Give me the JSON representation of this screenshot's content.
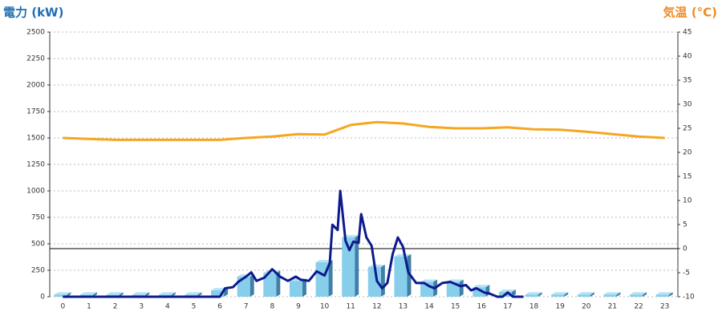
{
  "chart_data": {
    "type": "bar",
    "y_label": "電力 (kW)",
    "y2_label": "気温 (°C)",
    "categories": [
      "0",
      "1",
      "2",
      "3",
      "4",
      "5",
      "6",
      "7",
      "8",
      "9",
      "10",
      "11",
      "12",
      "13",
      "14",
      "15",
      "16",
      "17",
      "18",
      "19",
      "20",
      "21",
      "22",
      "23"
    ],
    "ylim": [
      0,
      2500
    ],
    "yticks": [
      0,
      250,
      500,
      750,
      1000,
      1250,
      1500,
      1750,
      2000,
      2250,
      2500
    ],
    "y2lim": [
      -10,
      45
    ],
    "y2ticks": [
      -10,
      -5,
      0,
      5,
      10,
      15,
      20,
      25,
      30,
      35,
      40,
      45
    ],
    "grid": true,
    "series": [
      {
        "type": "bar",
        "color": "#87ceeb",
        "values": [
          20,
          20,
          20,
          20,
          20,
          20,
          60,
          190,
          225,
          150,
          325,
          560,
          280,
          380,
          140,
          140,
          90,
          45,
          20,
          20,
          20,
          20,
          20,
          20
        ]
      },
      {
        "type": "line",
        "color": "#0d1a8c",
        "x": [
          0,
          6.0,
          6.2,
          6.5,
          6.7,
          7.0,
          7.2,
          7.4,
          7.7,
          8.0,
          8.3,
          8.6,
          8.9,
          9.1,
          9.4,
          9.7,
          10.0,
          10.2,
          10.3,
          10.5,
          10.6,
          10.8,
          10.95,
          11.1,
          11.3,
          11.4,
          11.6,
          11.8,
          12.0,
          12.2,
          12.4,
          12.6,
          12.8,
          13.0,
          13.2,
          13.5,
          13.8,
          14.0,
          14.2,
          14.5,
          14.8,
          15.0,
          15.2,
          15.4,
          15.6,
          15.8,
          16.1,
          16.3,
          16.6,
          16.8,
          17.0,
          17.2,
          17.6
        ],
        "values": [
          0,
          0,
          80,
          90,
          140,
          190,
          230,
          150,
          180,
          260,
          190,
          150,
          190,
          160,
          150,
          240,
          200,
          320,
          680,
          630,
          1000,
          530,
          440,
          520,
          510,
          780,
          560,
          480,
          150,
          80,
          130,
          400,
          560,
          470,
          230,
          130,
          130,
          100,
          80,
          130,
          140,
          120,
          100,
          110,
          60,
          80,
          40,
          30,
          0,
          0,
          40,
          0,
          0
        ]
      },
      {
        "type": "line",
        "axis": "y2",
        "color": "#f5a623",
        "values": [
          23,
          22.8,
          22.6,
          22.6,
          22.6,
          22.6,
          22.6,
          23,
          23.3,
          23.8,
          23.7,
          25.7,
          26.3,
          26,
          25.3,
          25,
          25,
          25.2,
          24.8,
          24.7,
          24.3,
          23.8,
          23.3,
          23
        ]
      }
    ]
  }
}
